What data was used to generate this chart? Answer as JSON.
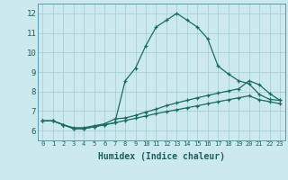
{
  "xlabel": "Humidex (Indice chaleur)",
  "background_color": "#cce9ee",
  "grid_color": "#aacfd8",
  "line_color": "#1a6b60",
  "spine_color": "#5a9aaa",
  "xlim": [
    -0.5,
    23.5
  ],
  "ylim": [
    5.5,
    12.5
  ],
  "xticks": [
    0,
    1,
    2,
    3,
    4,
    5,
    6,
    7,
    8,
    9,
    10,
    11,
    12,
    13,
    14,
    15,
    16,
    17,
    18,
    19,
    20,
    21,
    22,
    23
  ],
  "yticks": [
    6,
    7,
    8,
    9,
    10,
    11,
    12
  ],
  "series": [
    {
      "x": [
        0,
        1,
        2,
        3,
        4,
        5,
        6,
        7,
        8,
        9,
        10,
        11,
        12,
        13,
        14,
        15,
        16,
        17,
        18,
        19,
        20,
        21,
        22,
        23
      ],
      "y": [
        6.5,
        6.5,
        6.3,
        6.1,
        6.1,
        6.2,
        6.3,
        6.4,
        8.55,
        9.2,
        10.35,
        11.3,
        11.65,
        12.0,
        11.65,
        11.3,
        10.7,
        9.3,
        8.9,
        8.55,
        8.4,
        7.85,
        7.6,
        7.55
      ]
    },
    {
      "x": [
        0,
        1,
        2,
        3,
        4,
        5,
        6,
        7,
        8,
        9,
        10,
        11,
        12,
        13,
        14,
        15,
        16,
        17,
        18,
        19,
        20,
        21,
        22,
        23
      ],
      "y": [
        6.5,
        6.5,
        6.3,
        6.15,
        6.15,
        6.25,
        6.35,
        6.6,
        6.65,
        6.78,
        6.95,
        7.1,
        7.28,
        7.42,
        7.55,
        7.68,
        7.8,
        7.92,
        8.03,
        8.14,
        8.55,
        8.35,
        7.9,
        7.55
      ]
    },
    {
      "x": [
        0,
        1,
        2,
        3,
        4,
        5,
        6,
        7,
        8,
        9,
        10,
        11,
        12,
        13,
        14,
        15,
        16,
        17,
        18,
        19,
        20,
        21,
        22,
        23
      ],
      "y": [
        6.5,
        6.5,
        6.3,
        6.1,
        6.1,
        6.2,
        6.3,
        6.4,
        6.52,
        6.63,
        6.75,
        6.87,
        6.97,
        7.07,
        7.17,
        7.27,
        7.38,
        7.48,
        7.58,
        7.68,
        7.78,
        7.58,
        7.48,
        7.38
      ]
    }
  ]
}
